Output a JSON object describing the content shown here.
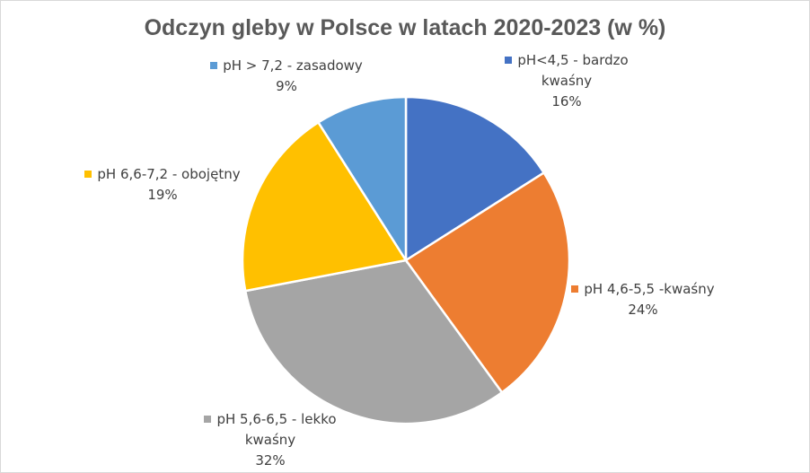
{
  "chart_data": {
    "type": "pie",
    "title": "Odczyn gleby w Polsce w latach 2020-2023 (w %)",
    "categories": [
      "pH<4,5 - bardzo kwaśny",
      "pH 4,6-5,5 -kwaśny",
      "pH 5,6-6,5 - lekko kwaśny",
      "pH 6,6-7,2 - obojętny",
      "pH > 7,2 - zasadowy"
    ],
    "values": [
      16,
      24,
      32,
      19,
      9
    ],
    "value_labels": [
      "16%",
      "24%",
      "32%",
      "19%",
      "9%"
    ],
    "colors": [
      "#4472c4",
      "#ed7d31",
      "#a5a5a5",
      "#ffc000",
      "#5b9bd5"
    ]
  }
}
